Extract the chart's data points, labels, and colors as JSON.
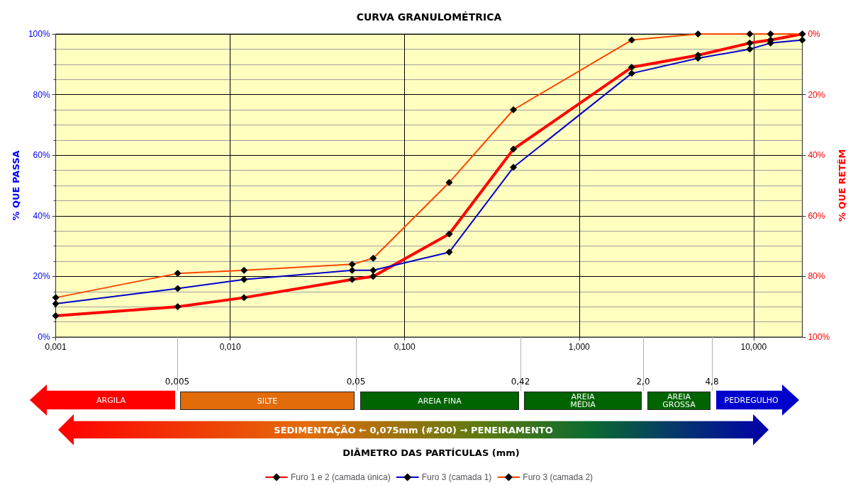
{
  "chart_data": {
    "type": "line",
    "title": "CURVA GRANULOMÉTRICA",
    "ylabel": "% QUE PASSA",
    "y2label": "% QUE RETÊM",
    "x": [
      0.001,
      0.005,
      0.012,
      0.05,
      0.066,
      0.18,
      0.42,
      2.0,
      4.8,
      9.5,
      12.5,
      19
    ],
    "series": [
      {
        "name": "Furo 1 e 2 (camada única)",
        "color": "#ff0000",
        "values": [
          7,
          10,
          13,
          19,
          20,
          34,
          62,
          89,
          93,
          97,
          98,
          100
        ]
      },
      {
        "name": "Furo 3 (camada 1)",
        "color": "#0000cc",
        "values": [
          11,
          16,
          19,
          22,
          22,
          28,
          56,
          87,
          92,
          95,
          97,
          98
        ]
      },
      {
        "name": "Furo 3 (camada 2)",
        "color": "#ff4500",
        "values": [
          13,
          21,
          22,
          24,
          26,
          51,
          75,
          98,
          100,
          100,
          100,
          100
        ]
      }
    ],
    "log": "x",
    "xlim": [
      0.001,
      19
    ],
    "xticks": [
      {
        "value": 0.001,
        "label": "0,001"
      },
      {
        "value": 0.01,
        "label": "0,010"
      },
      {
        "value": 0.1,
        "label": "0,100"
      },
      {
        "value": 1,
        "label": "1,000"
      },
      {
        "value": 10,
        "label": "10,000"
      }
    ],
    "ylim": [
      0,
      100
    ],
    "yticks": [
      {
        "value": 0,
        "label": "0%"
      },
      {
        "value": 20,
        "label": "20%"
      },
      {
        "value": 40,
        "label": "40%"
      },
      {
        "value": 60,
        "label": "60%"
      },
      {
        "value": 80,
        "label": "80%"
      },
      {
        "value": 100,
        "label": "100%"
      }
    ],
    "y2lim": [
      100,
      0
    ],
    "y2ticks": [
      {
        "value": 0,
        "label": "0%"
      },
      {
        "value": 20,
        "label": "20%"
      },
      {
        "value": 40,
        "label": "40%"
      },
      {
        "value": 60,
        "label": "60%"
      },
      {
        "value": 80,
        "label": "80%"
      },
      {
        "value": 100,
        "label": "100%"
      }
    ],
    "annotations": [
      "ARGILA",
      "SILTE",
      "AREIA FINA",
      "AREIA MÉDIA",
      "AREIA GROSSA",
      "PEDREGULHO",
      "0,005",
      "0,05",
      "0,42",
      "2,0",
      "4,8",
      "SEDIMENTAÇÃO ← 0,075mm (#200) →  PENEIRAMENTO",
      "DIÂMETRO DAS PARTÍCULAS (mm)"
    ],
    "grid": true,
    "legend": "bottom",
    "marker": "diamond",
    "line_style": "solid"
  }
}
